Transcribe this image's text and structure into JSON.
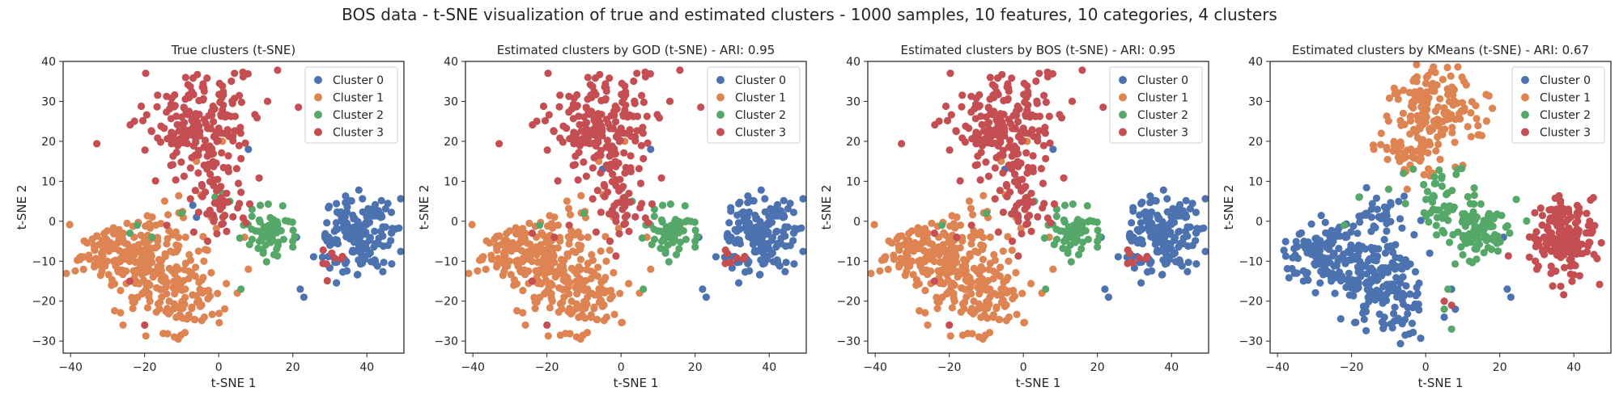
{
  "figure": {
    "suptitle": "BOS data - t-SNE visualization of true and estimated clusters - 1000 samples, 10 features, 10 categories, 4 clusters"
  },
  "colors": {
    "cluster0": "#4c72b0",
    "cluster1": "#dd8452",
    "cluster2": "#55a868",
    "cluster3": "#c44e52"
  },
  "chart_data": [
    {
      "type": "scatter",
      "title": "True clusters (t-SNE)",
      "xlabel": "t-SNE 1",
      "ylabel": "t-SNE 2",
      "xlim": [
        -42,
        50
      ],
      "ylim": [
        -33,
        40
      ],
      "xticks": [
        -40,
        -20,
        0,
        20,
        40
      ],
      "yticks": [
        -30,
        -20,
        -10,
        0,
        10,
        20,
        30,
        40
      ],
      "grid": false,
      "legend": "top-right",
      "series": [
        {
          "name": "Cluster 0",
          "color": "#4c72b0",
          "blobs": [
            {
              "cx": 38,
              "cy": -4,
              "sx": 4.5,
              "sy": 5,
              "n": 155
            },
            {
              "cx": 33,
              "cy": 3,
              "sx": 2,
              "sy": 2,
              "n": 8
            }
          ],
          "points": [
            [
              22,
              -17
            ],
            [
              23,
              -19
            ],
            [
              21,
              -4
            ],
            [
              -7,
              4
            ],
            [
              28,
              -9
            ],
            [
              30,
              -6
            ],
            [
              8,
              18
            ],
            [
              -6,
              1
            ]
          ]
        },
        {
          "name": "Cluster 1",
          "color": "#dd8452",
          "blobs": [
            {
              "cx": -28,
              "cy": -8,
              "sx": 5,
              "sy": 4,
              "n": 120
            },
            {
              "cx": -18,
              "cy": -14,
              "sx": 5,
              "sy": 5,
              "n": 110
            },
            {
              "cx": -8,
              "cy": -19,
              "sx": 4,
              "sy": 5,
              "n": 75
            },
            {
              "cx": -14,
              "cy": -2,
              "sx": 5,
              "sy": 4,
              "n": 30
            }
          ],
          "points": [
            [
              -6,
              15
            ],
            [
              1,
              20
            ],
            [
              4,
              22
            ],
            [
              -2,
              18
            ],
            [
              7,
              -4
            ],
            [
              8,
              -12
            ],
            [
              5,
              -18
            ],
            [
              -4,
              -10
            ]
          ]
        },
        {
          "name": "Cluster 2",
          "color": "#55a868",
          "blobs": [
            {
              "cx": 14,
              "cy": -3,
              "sx": 3,
              "sy": 3,
              "n": 60
            }
          ],
          "points": [
            [
              -1,
              6
            ],
            [
              3,
              5
            ],
            [
              -10,
              2
            ],
            [
              -24,
              -3
            ],
            [
              -22,
              -1
            ],
            [
              1,
              7
            ],
            [
              12,
              -8
            ],
            [
              6,
              -17
            ],
            [
              20,
              -5
            ],
            [
              16,
              -6
            ],
            [
              9,
              3
            ],
            [
              -18,
              -4
            ]
          ]
        },
        {
          "name": "Cluster 3",
          "color": "#c44e52",
          "blobs": [
            {
              "cx": -5,
              "cy": 25,
              "sx": 8,
              "sy": 6,
              "n": 190
            },
            {
              "cx": 0,
              "cy": 6,
              "sx": 4,
              "sy": 6,
              "n": 55
            },
            {
              "cx": 30,
              "cy": -10,
              "sx": 2,
              "sy": 2,
              "n": 8
            }
          ],
          "points": [
            [
              -20,
              -26
            ],
            [
              -14,
              -1
            ],
            [
              -3,
              -5
            ],
            [
              -24,
              -15
            ]
          ]
        }
      ]
    },
    {
      "type": "scatter",
      "title": "Estimated clusters by GOD (t-SNE) - ARI: 0.95",
      "xlabel": "t-SNE 1",
      "ylabel": "t-SNE 2",
      "xlim": [
        -42,
        50
      ],
      "ylim": [
        -33,
        40
      ],
      "xticks": [
        -40,
        -20,
        0,
        20,
        40
      ],
      "yticks": [
        -30,
        -20,
        -10,
        0,
        10,
        20,
        30,
        40
      ],
      "grid": false,
      "legend": "top-right",
      "series": [
        {
          "name": "Cluster 0",
          "color": "#4c72b0",
          "blobs": [
            {
              "cx": 38,
              "cy": -4,
              "sx": 4.5,
              "sy": 5,
              "n": 158
            },
            {
              "cx": 33,
              "cy": 3,
              "sx": 2,
              "sy": 2,
              "n": 8
            }
          ],
          "points": [
            [
              22,
              -17
            ],
            [
              23,
              -19
            ],
            [
              21,
              -4
            ],
            [
              -5,
              13
            ],
            [
              28,
              -9
            ],
            [
              8,
              18
            ]
          ]
        },
        {
          "name": "Cluster 1",
          "color": "#dd8452",
          "blobs": [
            {
              "cx": -28,
              "cy": -8,
              "sx": 5,
              "sy": 4,
              "n": 120
            },
            {
              "cx": -18,
              "cy": -14,
              "sx": 5,
              "sy": 5,
              "n": 110
            },
            {
              "cx": -8,
              "cy": -19,
              "sx": 4,
              "sy": 5,
              "n": 75
            },
            {
              "cx": -14,
              "cy": -2,
              "sx": 5,
              "sy": 4,
              "n": 30
            }
          ],
          "points": [
            [
              -6,
              15
            ],
            [
              1,
              20
            ],
            [
              -2,
              18
            ],
            [
              7,
              -4
            ],
            [
              8,
              -12
            ],
            [
              5,
              -18
            ],
            [
              -4,
              -10
            ]
          ]
        },
        {
          "name": "Cluster 2",
          "color": "#55a868",
          "blobs": [
            {
              "cx": 14,
              "cy": -3,
              "sx": 3,
              "sy": 3,
              "n": 58
            }
          ],
          "points": [
            [
              1,
              6
            ],
            [
              3,
              5
            ],
            [
              -10,
              2
            ],
            [
              -22,
              -1
            ],
            [
              12,
              -8
            ],
            [
              6,
              -17
            ],
            [
              20,
              -5
            ],
            [
              9,
              3
            ]
          ]
        },
        {
          "name": "Cluster 3",
          "color": "#c44e52",
          "blobs": [
            {
              "cx": -5,
              "cy": 25,
              "sx": 8,
              "sy": 6,
              "n": 192
            },
            {
              "cx": 0,
              "cy": 6,
              "sx": 4,
              "sy": 6,
              "n": 55
            },
            {
              "cx": 30,
              "cy": -10,
              "sx": 2,
              "sy": 2,
              "n": 8
            }
          ],
          "points": [
            [
              -20,
              -26
            ],
            [
              -14,
              -1
            ],
            [
              -3,
              -5
            ],
            [
              -24,
              -15
            ],
            [
              -24,
              -3
            ],
            [
              -18,
              -4
            ]
          ]
        }
      ]
    },
    {
      "type": "scatter",
      "title": "Estimated clusters by BOS (t-SNE) - ARI: 0.95",
      "xlabel": "t-SNE 1",
      "ylabel": "t-SNE 2",
      "xlim": [
        -42,
        50
      ],
      "ylim": [
        -33,
        40
      ],
      "xticks": [
        -40,
        -20,
        0,
        20,
        40
      ],
      "yticks": [
        -30,
        -20,
        -10,
        0,
        10,
        20,
        30,
        40
      ],
      "grid": false,
      "legend": "top-right",
      "series": [
        {
          "name": "Cluster 0",
          "color": "#4c72b0",
          "blobs": [
            {
              "cx": 38,
              "cy": -4,
              "sx": 4.5,
              "sy": 5,
              "n": 158
            },
            {
              "cx": 33,
              "cy": 3,
              "sx": 2,
              "sy": 2,
              "n": 8
            }
          ],
          "points": [
            [
              22,
              -17
            ],
            [
              23,
              -19
            ],
            [
              21,
              -4
            ],
            [
              -5,
              13
            ],
            [
              28,
              -9
            ],
            [
              8,
              18
            ]
          ]
        },
        {
          "name": "Cluster 1",
          "color": "#dd8452",
          "blobs": [
            {
              "cx": -28,
              "cy": -8,
              "sx": 5,
              "sy": 4,
              "n": 120
            },
            {
              "cx": -18,
              "cy": -14,
              "sx": 5,
              "sy": 5,
              "n": 110
            },
            {
              "cx": -8,
              "cy": -19,
              "sx": 4,
              "sy": 5,
              "n": 75
            },
            {
              "cx": -14,
              "cy": -2,
              "sx": 5,
              "sy": 4,
              "n": 30
            }
          ],
          "points": [
            [
              -6,
              15
            ],
            [
              1,
              20
            ],
            [
              -2,
              18
            ],
            [
              7,
              -4
            ],
            [
              8,
              -12
            ],
            [
              5,
              -18
            ],
            [
              -4,
              -10
            ]
          ]
        },
        {
          "name": "Cluster 2",
          "color": "#55a868",
          "blobs": [
            {
              "cx": 14,
              "cy": -3,
              "sx": 3,
              "sy": 3,
              "n": 58
            }
          ],
          "points": [
            [
              1,
              6
            ],
            [
              3,
              5
            ],
            [
              -10,
              2
            ],
            [
              -22,
              -1
            ],
            [
              12,
              -8
            ],
            [
              6,
              -17
            ],
            [
              20,
              -5
            ],
            [
              9,
              3
            ]
          ]
        },
        {
          "name": "Cluster 3",
          "color": "#c44e52",
          "blobs": [
            {
              "cx": -5,
              "cy": 25,
              "sx": 8,
              "sy": 6,
              "n": 192
            },
            {
              "cx": 0,
              "cy": 6,
              "sx": 4,
              "sy": 6,
              "n": 55
            },
            {
              "cx": 30,
              "cy": -10,
              "sx": 2,
              "sy": 2,
              "n": 8
            }
          ],
          "points": [
            [
              -20,
              -26
            ],
            [
              -14,
              -1
            ],
            [
              -3,
              -5
            ],
            [
              -24,
              -15
            ],
            [
              -24,
              -3
            ],
            [
              -18,
              -4
            ]
          ]
        }
      ]
    },
    {
      "type": "scatter",
      "title": "Estimated clusters by KMeans (t-SNE) - ARI: 0.67",
      "xlabel": "t-SNE 1",
      "ylabel": "t-SNE 2",
      "xlim": [
        -42,
        50
      ],
      "ylim": [
        -33,
        40
      ],
      "xticks": [
        -40,
        -20,
        0,
        20,
        40
      ],
      "yticks": [
        -30,
        -20,
        -10,
        0,
        10,
        20,
        30,
        40
      ],
      "grid": false,
      "legend": "top-right",
      "series": [
        {
          "name": "Cluster 0",
          "color": "#4c72b0",
          "blobs": [
            {
              "cx": -28,
              "cy": -8,
              "sx": 5,
              "sy": 4,
              "n": 110
            },
            {
              "cx": -16,
              "cy": -13,
              "sx": 5,
              "sy": 5,
              "n": 120
            },
            {
              "cx": -8,
              "cy": -19,
              "sx": 4,
              "sy": 5,
              "n": 75
            },
            {
              "cx": -13,
              "cy": 0,
              "sx": 5,
              "sy": 4,
              "n": 40
            }
          ],
          "points": [
            [
              22,
              -17
            ],
            [
              23,
              -19
            ],
            [
              21,
              -4
            ],
            [
              7,
              -17
            ],
            [
              8,
              -22
            ],
            [
              5,
              -24
            ]
          ]
        },
        {
          "name": "Cluster 1",
          "color": "#dd8452",
          "blobs": [
            {
              "cx": 2,
              "cy": 28,
              "sx": 6,
              "sy": 5,
              "n": 150
            },
            {
              "cx": -2,
              "cy": 17,
              "sx": 5,
              "sy": 3,
              "n": 45
            }
          ],
          "points": [
            [
              -5,
              8
            ],
            [
              -12,
              22
            ],
            [
              2,
              12
            ],
            [
              10,
              14
            ],
            [
              -14,
              18
            ]
          ]
        },
        {
          "name": "Cluster 2",
          "color": "#55a868",
          "blobs": [
            {
              "cx": 14,
              "cy": -2,
              "sx": 4,
              "sy": 3.5,
              "n": 95
            },
            {
              "cx": 4,
              "cy": 5,
              "sx": 4,
              "sy": 4,
              "n": 45
            }
          ],
          "points": [
            [
              -18,
              6
            ],
            [
              -22,
              -1
            ],
            [
              6,
              -17
            ],
            [
              5,
              -22
            ],
            [
              7,
              -27
            ],
            [
              -10,
              8
            ],
            [
              -6,
              12
            ],
            [
              20,
              -5
            ]
          ]
        },
        {
          "name": "Cluster 3",
          "color": "#c44e52",
          "blobs": [
            {
              "cx": 38,
              "cy": -4,
              "sx": 4.5,
              "sy": 5,
              "n": 165
            },
            {
              "cx": 33,
              "cy": 3,
              "sx": 2,
              "sy": 2,
              "n": 8
            }
          ],
          "points": [
            [
              28,
              -9
            ],
            [
              30,
              -12
            ],
            [
              5,
              -20
            ],
            [
              7,
              -21
            ]
          ]
        }
      ]
    }
  ]
}
